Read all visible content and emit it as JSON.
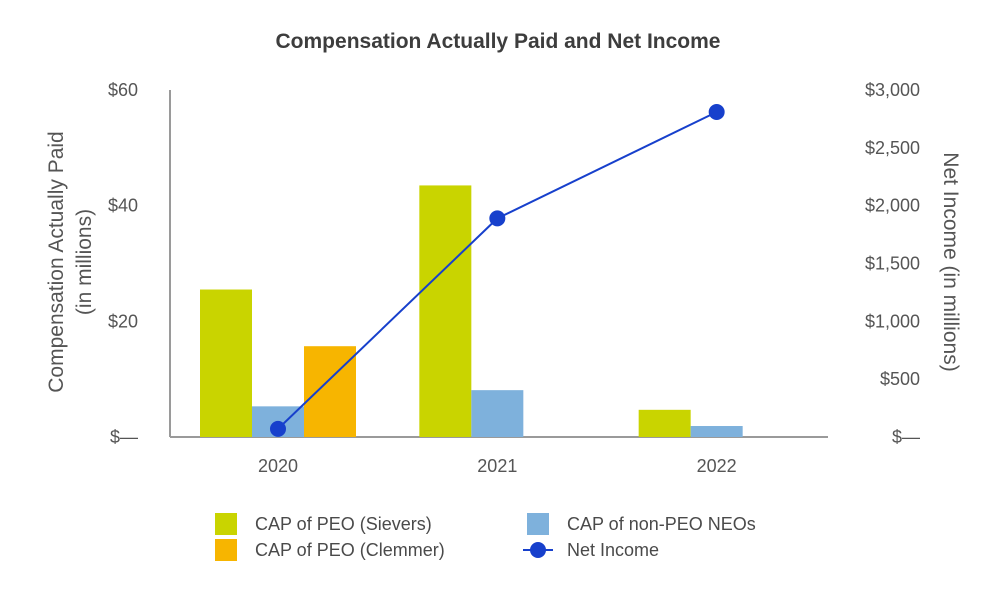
{
  "chart_data": {
    "type": "bar",
    "title": "Compensation Actually Paid and Net Income",
    "categories": [
      "2020",
      "2021",
      "2022"
    ],
    "y_left": {
      "label_lines": [
        "Compensation Actually Paid",
        "(in millions)"
      ],
      "ylim": [
        0,
        60
      ],
      "ticks": [
        0,
        20,
        40,
        60
      ],
      "tick_labels": [
        "$—",
        "$20",
        "$40",
        "$60"
      ]
    },
    "y_right": {
      "label": "Net Income (in millions)",
      "ylim": [
        0,
        3000
      ],
      "ticks": [
        0,
        500,
        1000,
        1500,
        2000,
        2500,
        3000
      ],
      "tick_labels": [
        "$—",
        "$500",
        "$1,000",
        "$1,500",
        "$2,000",
        "$2,500",
        "$3,000"
      ]
    },
    "series": [
      {
        "name": "CAP of PEO (Sievers)",
        "kind": "bar",
        "axis": "left",
        "color": "#c9d400",
        "slot": 0,
        "values": [
          25.5,
          43.5,
          4.7
        ]
      },
      {
        "name": "CAP of non-PEO NEOs",
        "kind": "bar",
        "axis": "left",
        "color": "#7eb1dc",
        "slot": 1,
        "values": [
          5.3,
          8.1,
          1.9
        ]
      },
      {
        "name": "CAP of PEO (Clemmer)",
        "kind": "bar",
        "axis": "left",
        "color": "#f7b500",
        "slot": 2,
        "values": [
          15.7,
          null,
          null
        ]
      },
      {
        "name": "Net Income",
        "kind": "line",
        "axis": "right",
        "color": "#1740cc",
        "values": [
          70,
          1890,
          2810
        ]
      }
    ],
    "legend_order": [
      0,
      1,
      2,
      3
    ],
    "legend_position": "bottom",
    "grid": false
  }
}
